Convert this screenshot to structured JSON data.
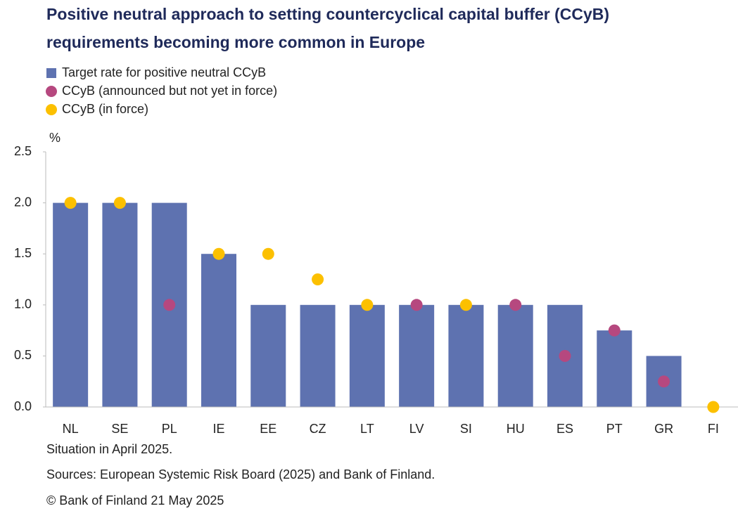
{
  "chart_data": {
    "type": "bar",
    "title": [
      "Positive neutral approach to setting countercyclical capital buffer (CCyB)",
      "requirements becoming more common in Europe"
    ],
    "y_label": "%",
    "categories": [
      "NL",
      "SE",
      "PL",
      "IE",
      "EE",
      "CZ",
      "LT",
      "LV",
      "SI",
      "HU",
      "ES",
      "PT",
      "GR",
      "FI"
    ],
    "series": [
      {
        "name": "Target rate for positive neutral CCyB",
        "type": "bar",
        "color": "#5e72b0",
        "values": [
          2.0,
          2.0,
          2.0,
          1.5,
          1.0,
          1.0,
          1.0,
          1.0,
          1.0,
          1.0,
          1.0,
          0.75,
          0.5,
          0
        ]
      },
      {
        "name": "CCyB (announced but not yet in force)",
        "type": "scatter",
        "color": "#b6487f",
        "values": [
          null,
          null,
          1.0,
          null,
          null,
          null,
          null,
          1.0,
          null,
          1.0,
          0.5,
          0.75,
          0.25,
          null
        ]
      },
      {
        "name": "CCyB (in force)",
        "type": "scatter",
        "color": "#fcc000",
        "values": [
          2.0,
          2.0,
          null,
          1.5,
          1.5,
          1.25,
          1.0,
          null,
          1.0,
          null,
          null,
          null,
          null,
          0
        ]
      }
    ],
    "ylim": [
      0,
      2.5
    ],
    "yticks": [
      {
        "value": 0,
        "label": "0.0"
      },
      0.5,
      {
        "value": 1,
        "label": "1.0"
      },
      1.5,
      {
        "value": 2,
        "label": "2.0"
      },
      2.5
    ],
    "notes": [
      "Situation in April 2025.",
      "Sources: European Systemic Risk Board (2025) and Bank of Finland."
    ],
    "copyright": "© Bank of Finland 21 May 2025"
  }
}
